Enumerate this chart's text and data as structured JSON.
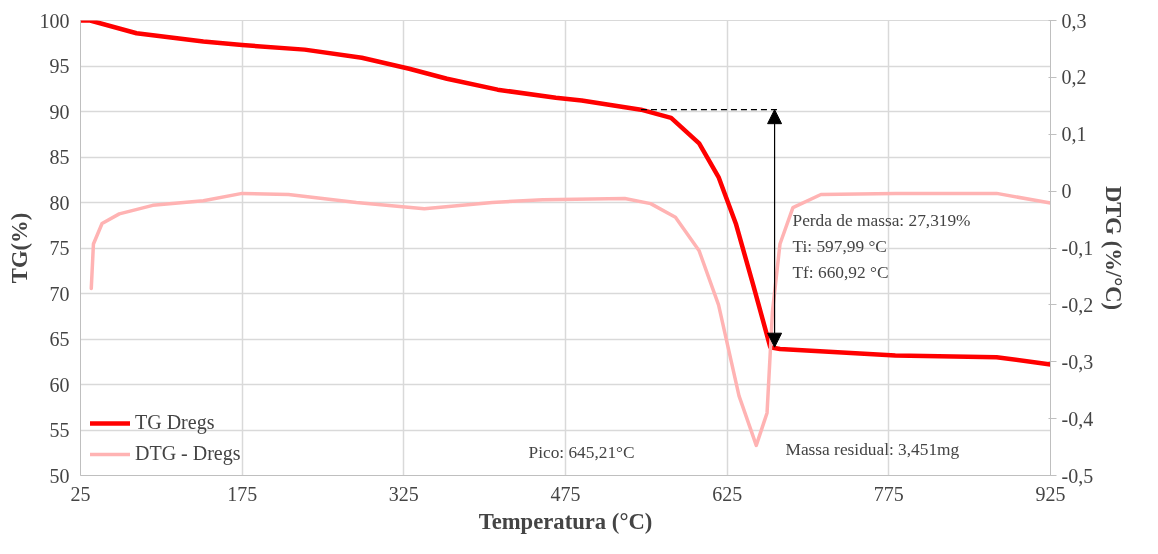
{
  "chart_data": {
    "type": "line",
    "xlabel": "Temperatura (°C)",
    "ylabel": "TG(%)",
    "y2label": "DTG (%/°C)",
    "xlim": [
      25,
      925
    ],
    "xticks": [
      25,
      175,
      325,
      475,
      625,
      775,
      925
    ],
    "ylim": [
      50,
      100
    ],
    "yticks": [
      50,
      55,
      60,
      65,
      70,
      75,
      80,
      85,
      90,
      95,
      100
    ],
    "y2lim": [
      -0.5,
      0.3
    ],
    "y2ticks": [
      {
        "value": -0.5,
        "label": "-0,5"
      },
      {
        "value": -0.4,
        "label": "-0,4"
      },
      {
        "value": -0.3,
        "label": "-0,3"
      },
      {
        "value": -0.2,
        "label": "-0,2"
      },
      {
        "value": -0.1,
        "label": "-0,1"
      },
      0,
      {
        "value": 0.1,
        "label": "0,1"
      },
      {
        "value": 0.2,
        "label": "0,2"
      },
      {
        "value": 0.3,
        "label": "0,3"
      }
    ],
    "grid": true,
    "legend": "bottom left",
    "line_style": "solid",
    "marker": "none",
    "series": [
      {
        "name": "TG Dregs",
        "color": "#ff0000",
        "x": [
          25,
          34,
          77,
          139,
          175,
          233,
          286,
          330,
          365,
          412,
          466,
          490,
          545,
          573,
          599,
          617,
          633,
          649,
          665,
          674,
          781,
          875,
          925
        ],
        "values": [
          100,
          100,
          98.6,
          97.7,
          97.3,
          96.8,
          95.9,
          94.7,
          93.6,
          92.4,
          91.5,
          91.2,
          90.2,
          89.3,
          86.5,
          82.8,
          77.7,
          71,
          64.1,
          63.9,
          63.2,
          63.0,
          62.2
        ]
      },
      {
        "name": "DTG - Dregs",
        "color": "#ffb3b3",
        "axis": "y2",
        "x": [
          35,
          37,
          45,
          61,
          92,
          139,
          175,
          218,
          281,
          344,
          407,
          454,
          530,
          554,
          577,
          599,
          617,
          636,
          652,
          662,
          667,
          674,
          686,
          712,
          781,
          875,
          925
        ],
        "values": [
          -0.171,
          -0.093,
          -0.057,
          -0.04,
          -0.025,
          -0.017,
          -0.004,
          -0.006,
          -0.02,
          -0.031,
          -0.02,
          -0.015,
          -0.013,
          -0.022,
          -0.046,
          -0.105,
          -0.2,
          -0.36,
          -0.447,
          -0.39,
          -0.212,
          -0.093,
          -0.029,
          -0.006,
          -0.004,
          -0.004,
          -0.021
        ]
      }
    ],
    "annotations": [
      "Perda de massa: 27,319%",
      "Ti: 597,99 °C",
      "Tf: 660,92 °C",
      "Pico: 645,21°C",
      "Massa residual: 3,451mg"
    ]
  }
}
